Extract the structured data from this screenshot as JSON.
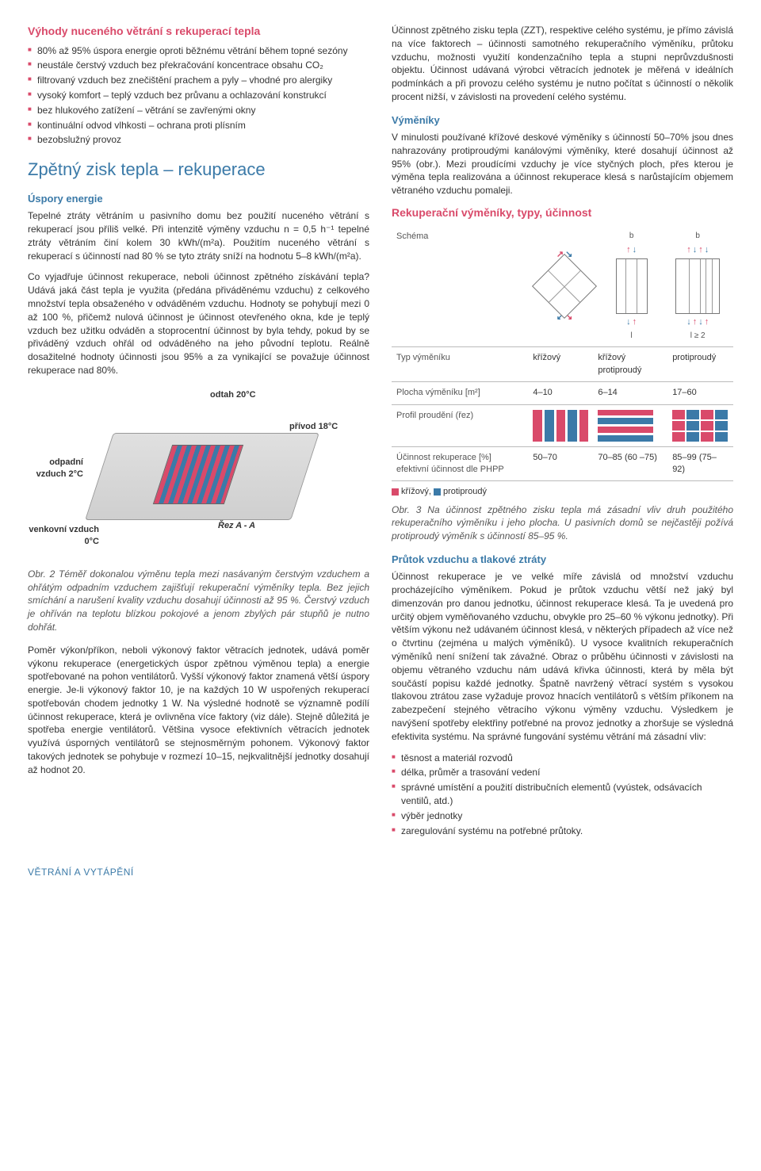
{
  "left": {
    "h_advantages": "Výhody nuceného větrání s rekuperací tepla",
    "adv": [
      "80% až 95% úspora energie oproti běžnému větrání během topné sezóny",
      "neustále čerstvý vzduch bez překračování koncentrace obsahu CO₂",
      "filtrovaný vzduch bez znečištění prachem a pyly – vhodné pro alergiky",
      "vysoký komfort – teplý vzduch bez průvanu a ochlazování konstrukcí",
      "bez hlukového zatížení – větrání se zavřenými okny",
      "kontinuální odvod vlhkosti – ochrana proti plísním",
      "bezobslužný provoz"
    ],
    "h_zisk": "Zpětný zisk tepla – rekuperace",
    "h_uspory": "Úspory energie",
    "p_uspory": "Tepelné ztráty větráním u pasivního domu bez použití nuceného větrání s rekuperací jsou příliš velké. Při intenzitě výměny vzduchu n = 0,5 h⁻¹ tepelné ztráty větráním činí kolem 30 kWh/(m²a). Použitím nuceného větrání s rekuperací s účinností nad 80 % se tyto ztráty sníží na hodnotu 5–8 kWh/(m²a).",
    "p_ucinnost": "Co vyjadřuje účinnost rekuperace, neboli účinnost zpětného získávání tepla? Udává jaká část tepla je využita (předána přiváděnému vzduchu) z celkového množství tepla obsaženého v odváděném vzduchu. Hodnoty se pohybují mezi 0 až 100 %, přičemž nulová účinnost je účinnost otevřeného okna, kde je teplý vzduch bez užitku odváděn a stoprocentní účinnost by byla tehdy, pokud by se přiváděný vzduch ohřál od odváděného na jeho původní teplotu. Reálně dosažitelné hodnoty účinnosti jsou 95% a za vynikající se považuje účinnost rekuperace nad 80%.",
    "fig_odtah": "odtah 20°C",
    "fig_privod": "přívod 18°C",
    "fig_odpadni": "odpadní vzduch 2°C",
    "fig_venkovni": "venkovní vzduch 0°C",
    "fig_rezAA": "Řez A - A",
    "caption2": "Obr. 2 Téměř dokonalou výměnu tepla mezi nasávaným čerstvým vzduchem a ohřátým odpadním vzduchem zajišťují rekuperační výměníky tepla. Bez jejich smíchání a narušení kvality vzduchu dosahují účinnosti až 95 %. Čerstvý vzduch je ohříván na teplotu blízkou pokojové a jenom zbylých pár stupňů je nutno dohřát.",
    "p_pomer": "Poměr výkon/příkon, neboli výkonový faktor větracích jednotek, udává poměr výkonu rekuperace (energetických úspor zpětnou výměnou tepla) a energie spotřebované na pohon ventilátorů. Vyšší výkonový faktor znamená větší úspory energie. Je-li výkonový faktor 10, je na každých 10 W uspořených rekuperací spotřebován chodem jednotky 1 W. Na výsledné hodnotě se významně podílí účinnost rekuperace, která je ovlivněna více faktory (viz dále). Stejně důležitá je spotřeba energie ventilátorů. Většina vysoce efektivních větracích jednotek využívá úsporných ventilátorů se stejnosměrným pohonem. Výkonový faktor takových jednotek se pohybuje v rozmezí 10–15, nejkvalitnější jednotky dosahují až hodnot 20."
  },
  "right": {
    "p_zzt": "Účinnost zpětného zisku tepla (ZZT), respektive celého systému, je přímo závislá na více faktorech – účinnosti samotného rekuperačního výměníku, průtoku vzduchu, možnosti využití kondenzačního tepla a stupni neprůvzdušnosti objektu. Účinnost udávaná výrobci větracích jednotek je měřená v ideálních podmínkách a při provozu celého systému je nutno počítat s účinností o několik procent nižší, v závislosti na provedení celého systému.",
    "h_vymeniky": "Výměníky",
    "p_vymeniky": "V minulosti používané křížové deskové výměníky s účinností 50–70% jsou dnes nahrazovány protiproudými kanálovými výměníky, které dosahují účinnost až 95% (obr.). Mezi proudícími vzduchy je více styčných ploch, přes kterou je výměna tepla realizována a účinnost rekuperace klesá s narůstajícím objemem větraného vzduchu pomaleji.",
    "h_table": "Rekuperační výměníky, typy, účinnost",
    "table": {
      "schema_label": "Schéma",
      "row_typ": "Typ výměníku",
      "row_plocha": "Plocha výměníku [m²]",
      "row_profil": "Profil proudění (řez)",
      "row_ucinnost": "Účinnost rekuperace [%] efektivní účinnost dle PHPP",
      "c1_typ": "křížový",
      "c2_typ": "křížový protiproudý",
      "c3_typ": "protiproudý",
      "c1_plocha": "4–10",
      "c2_plocha": "6–14",
      "c3_plocha": "17–60",
      "c1_uc": "50–70",
      "c2_uc": "70–85 (60 –75)",
      "c3_uc": "85–99 (75–92)"
    },
    "legend_krizovy": "křížový,",
    "legend_proti": "protiproudý",
    "caption3": "Obr. 3 Na účinnost zpětného zisku tepla má zásadní vliv druh použitého rekuperačního výměníku i jeho plocha. U pasivních domů se nejčastěji požívá protiproudý výměník s účinností 85–95 %.",
    "h_prutok": "Průtok vzduchu a tlakové ztráty",
    "p_prutok": "Účinnost rekuperace je ve velké míře závislá od množství vzduchu procházejícího výměníkem. Pokud je průtok vzduchu větší než jaký byl dimenzován pro danou jednotku, účinnost rekuperace klesá. Ta je uvedená pro určitý objem vyměňovaného vzduchu, obvykle pro 25–60 % výkonu jednotky). Při větším výkonu než udávaném účinnost klesá, v některých případech až více než o čtvrtinu (zejména u malých výměníků). U vysoce kvalitních rekuperačních výměníků není snížení tak závažné. Obraz o průběhu účinnosti v závislosti na objemu větraného vzduchu nám udává křivka účinnosti, která by měla být součástí popisu každé jednotky. Špatně navržený větrací systém s vysokou tlakovou ztrátou zase vyžaduje provoz hnacích ventilátorů s větším příkonem na zabezpečení stejného větracího výkonu výměny vzduchu. Výsledkem je navýšení spotřeby elektřiny potřebné na provoz jednotky a zhoršuje se výsledná efektivita systému. Na správné fungování systému větrání má zásadní vliv:",
    "prutok_list": [
      "těsnost a materiál rozvodů",
      "délka, průměr a trasování vedení",
      "správné umístění a použití distribučních elementů (vyústek, odsávacích ventilů, atd.)",
      "výběr jednotky",
      "zaregulování systému na potřebné průtoky."
    ]
  },
  "footer": "VĚTRÁNÍ A VYTÁPĚNÍ"
}
